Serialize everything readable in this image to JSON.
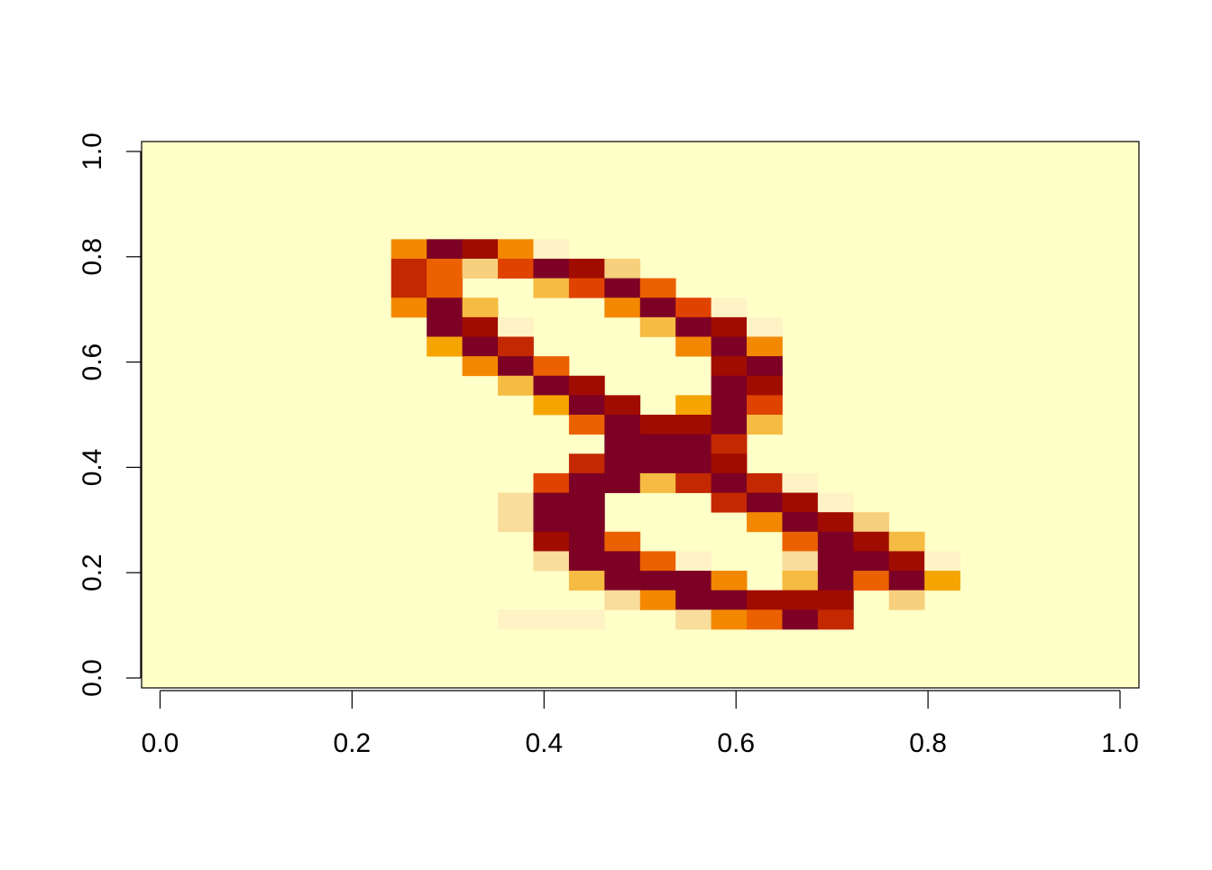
{
  "chart_data": {
    "type": "heatmap",
    "title": "",
    "xlabel": "",
    "ylabel": "",
    "xlim": [
      0,
      1
    ],
    "ylim": [
      0,
      1
    ],
    "x_ticks": [
      "0.0",
      "0.2",
      "0.4",
      "0.6",
      "0.8",
      "1.0"
    ],
    "y_ticks": [
      "0.0",
      "0.2",
      "0.4",
      "0.6",
      "0.8",
      "1.0"
    ],
    "grid": false,
    "legend": "none",
    "colormap": "heat.colors (reversed)",
    "background_color": "#FFFFC8",
    "palette": {
      "0": "#FFFFC8",
      "1": "#FFF3C5",
      "2": "#F9DD9C",
      "3": "#F7D07E",
      "4": "#F6BB43",
      "5": "#F6A500",
      "6": "#F38800",
      "7": "#EB6100",
      "8": "#E04300",
      "9": "#C32800",
      "10": "#A10C00",
      "11": "#7D0025"
    },
    "grid_size": [
      28,
      28
    ],
    "cells": [
      [
        7,
        22,
        6
      ],
      [
        8,
        22,
        11
      ],
      [
        9,
        22,
        10
      ],
      [
        10,
        22,
        6
      ],
      [
        11,
        22,
        1
      ],
      [
        7,
        21,
        9
      ],
      [
        8,
        21,
        7
      ],
      [
        9,
        21,
        3
      ],
      [
        10,
        21,
        8
      ],
      [
        11,
        21,
        11
      ],
      [
        12,
        21,
        10
      ],
      [
        13,
        21,
        3
      ],
      [
        7,
        20,
        9
      ],
      [
        8,
        20,
        7
      ],
      [
        11,
        20,
        4
      ],
      [
        12,
        20,
        8
      ],
      [
        13,
        20,
        11
      ],
      [
        14,
        20,
        7
      ],
      [
        7,
        19,
        6
      ],
      [
        8,
        19,
        11
      ],
      [
        9,
        19,
        4
      ],
      [
        13,
        19,
        6
      ],
      [
        14,
        19,
        11
      ],
      [
        15,
        19,
        8
      ],
      [
        16,
        19,
        1
      ],
      [
        8,
        18,
        11
      ],
      [
        9,
        18,
        10
      ],
      [
        10,
        18,
        1
      ],
      [
        14,
        18,
        4
      ],
      [
        15,
        18,
        11
      ],
      [
        16,
        18,
        10
      ],
      [
        17,
        18,
        1
      ],
      [
        8,
        17,
        5
      ],
      [
        9,
        17,
        11
      ],
      [
        10,
        17,
        9
      ],
      [
        15,
        17,
        6
      ],
      [
        16,
        17,
        11
      ],
      [
        17,
        17,
        6
      ],
      [
        9,
        16,
        6
      ],
      [
        10,
        16,
        11
      ],
      [
        11,
        16,
        7
      ],
      [
        16,
        16,
        10
      ],
      [
        17,
        16,
        11
      ],
      [
        10,
        15,
        4
      ],
      [
        11,
        15,
        11
      ],
      [
        12,
        15,
        10
      ],
      [
        16,
        15,
        11
      ],
      [
        17,
        15,
        10
      ],
      [
        11,
        14,
        5
      ],
      [
        12,
        14,
        11
      ],
      [
        13,
        14,
        10
      ],
      [
        15,
        14,
        5
      ],
      [
        16,
        14,
        11
      ],
      [
        17,
        14,
        8
      ],
      [
        12,
        13,
        7
      ],
      [
        13,
        13,
        11
      ],
      [
        14,
        13,
        10
      ],
      [
        15,
        13,
        10
      ],
      [
        16,
        13,
        11
      ],
      [
        17,
        13,
        4
      ],
      [
        13,
        12,
        11
      ],
      [
        14,
        12,
        11
      ],
      [
        15,
        12,
        11
      ],
      [
        16,
        12,
        9
      ],
      [
        12,
        11,
        9
      ],
      [
        13,
        11,
        11
      ],
      [
        14,
        11,
        11
      ],
      [
        15,
        11,
        11
      ],
      [
        16,
        11,
        10
      ],
      [
        11,
        10,
        8
      ],
      [
        12,
        10,
        11
      ],
      [
        13,
        10,
        11
      ],
      [
        14,
        10,
        4
      ],
      [
        15,
        10,
        9
      ],
      [
        16,
        10,
        11
      ],
      [
        17,
        10,
        9
      ],
      [
        18,
        10,
        1
      ],
      [
        10,
        9,
        2
      ],
      [
        11,
        9,
        11
      ],
      [
        12,
        9,
        11
      ],
      [
        16,
        9,
        9
      ],
      [
        17,
        9,
        11
      ],
      [
        18,
        9,
        10
      ],
      [
        19,
        9,
        1
      ],
      [
        10,
        8,
        2
      ],
      [
        11,
        8,
        11
      ],
      [
        12,
        8,
        11
      ],
      [
        17,
        8,
        6
      ],
      [
        18,
        8,
        11
      ],
      [
        19,
        8,
        10
      ],
      [
        20,
        8,
        3
      ],
      [
        11,
        7,
        10
      ],
      [
        12,
        7,
        11
      ],
      [
        13,
        7,
        7
      ],
      [
        18,
        7,
        7
      ],
      [
        19,
        7,
        11
      ],
      [
        20,
        7,
        10
      ],
      [
        21,
        7,
        4
      ],
      [
        11,
        6,
        2
      ],
      [
        12,
        6,
        11
      ],
      [
        13,
        6,
        11
      ],
      [
        14,
        6,
        7
      ],
      [
        15,
        6,
        1
      ],
      [
        18,
        6,
        2
      ],
      [
        19,
        6,
        11
      ],
      [
        20,
        6,
        11
      ],
      [
        21,
        6,
        10
      ],
      [
        22,
        6,
        1
      ],
      [
        12,
        5,
        4
      ],
      [
        13,
        5,
        11
      ],
      [
        14,
        5,
        11
      ],
      [
        15,
        5,
        11
      ],
      [
        16,
        5,
        6
      ],
      [
        18,
        5,
        4
      ],
      [
        19,
        5,
        11
      ],
      [
        20,
        5,
        7
      ],
      [
        21,
        5,
        11
      ],
      [
        22,
        5,
        5
      ],
      [
        13,
        4,
        2
      ],
      [
        14,
        4,
        6
      ],
      [
        15,
        4,
        11
      ],
      [
        16,
        4,
        11
      ],
      [
        17,
        4,
        10
      ],
      [
        18,
        4,
        10
      ],
      [
        19,
        4,
        10
      ],
      [
        21,
        4,
        3
      ],
      [
        10,
        3,
        1
      ],
      [
        11,
        3,
        1
      ],
      [
        12,
        3,
        1
      ],
      [
        15,
        3,
        2
      ],
      [
        16,
        3,
        6
      ],
      [
        17,
        3,
        7
      ],
      [
        18,
        3,
        11
      ],
      [
        19,
        3,
        9
      ]
    ]
  }
}
